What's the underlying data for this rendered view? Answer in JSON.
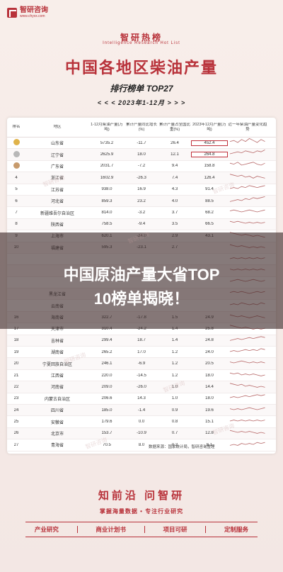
{
  "logo": {
    "name": "智研咨询",
    "sub": "www.chyxx.com"
  },
  "hero": {
    "title": "智研热榜",
    "subtitle": "Intelligence Research Hot List"
  },
  "main_title": "中国各地区柴油产量",
  "rank_line": "排行榜单 TOP27",
  "date_line": "< < <  2023年1-12月  > > >",
  "table": {
    "headers": [
      "排名",
      "地区",
      "1-12月柴油产量(万吨)",
      "累计产量同比增长(%)",
      "累计产量占全国比重(%)",
      "2023年12月产量(万吨)",
      "近一年柴油产量变化趋势"
    ],
    "rows": [
      {
        "rank": "1",
        "region": "山东省",
        "v1": "5735.2",
        "v2": "-11.7",
        "v3": "26.4",
        "v4": "452.4",
        "trend": [
          6,
          7,
          5,
          8,
          6,
          9,
          7,
          5,
          8,
          6
        ]
      },
      {
        "rank": "2",
        "region": "辽宁省",
        "v1": "2625.9",
        "v2": "18.0",
        "v3": "12.1",
        "v4": "264.8",
        "trend": [
          5,
          6,
          7,
          6,
          8,
          7,
          6,
          8,
          7,
          9
        ]
      },
      {
        "rank": "3",
        "region": "广东省",
        "v1": "2031.7",
        "v2": "-7.2",
        "v3": "9.4",
        "v4": "158.8",
        "trend": [
          7,
          6,
          8,
          5,
          6,
          7,
          8,
          6,
          5,
          7
        ]
      },
      {
        "rank": "4",
        "region": "浙江省",
        "v1": "1602.9",
        "v2": "-26.3",
        "v3": "7.4",
        "v4": "126.4",
        "trend": [
          8,
          7,
          6,
          7,
          5,
          6,
          4,
          6,
          5,
          4
        ]
      },
      {
        "rank": "5",
        "region": "江苏省",
        "v1": "938.0",
        "v2": "16.9",
        "v3": "4.3",
        "v4": "91.4",
        "trend": [
          5,
          6,
          5,
          7,
          6,
          8,
          7,
          6,
          7,
          8
        ]
      },
      {
        "rank": "6",
        "region": "河北省",
        "v1": "859.3",
        "v2": "23.2",
        "v3": "4.0",
        "v4": "88.5",
        "trend": [
          4,
          5,
          6,
          5,
          7,
          6,
          8,
          7,
          8,
          9
        ]
      },
      {
        "rank": "7",
        "region": "新疆维吾尔自治区",
        "v1": "814.0",
        "v2": "-3.2",
        "v3": "3.7",
        "v4": "68.2",
        "trend": [
          6,
          7,
          6,
          5,
          6,
          7,
          6,
          5,
          6,
          7
        ]
      },
      {
        "rank": "8",
        "region": "陕西省",
        "v1": "758.5",
        "v2": "-9.4",
        "v3": "3.5",
        "v4": "66.5",
        "trend": [
          7,
          6,
          7,
          6,
          5,
          6,
          5,
          6,
          5,
          6
        ]
      },
      {
        "rank": "9",
        "region": "上海市",
        "v1": "620.1",
        "v2": "-24.0",
        "v3": "2.9",
        "v4": "43.1",
        "trend": [
          8,
          7,
          6,
          5,
          6,
          5,
          4,
          5,
          4,
          3
        ]
      },
      {
        "rank": "10",
        "region": "福建省",
        "v1": "595.3",
        "v2": "-23.1",
        "v3": "2.7",
        "v4": "",
        "trend": [
          7,
          6,
          5,
          6,
          5,
          4,
          5,
          4,
          5,
          4
        ]
      },
      {
        "rank": "",
        "region": "",
        "v1": "",
        "v2": "",
        "v3": "",
        "v4": "",
        "trend": [
          5,
          6,
          5,
          6,
          5,
          6,
          5,
          6,
          5,
          6
        ]
      },
      {
        "rank": "",
        "region": "",
        "v1": "",
        "v2": "",
        "v3": "",
        "v4": "",
        "trend": [
          6,
          5,
          6,
          5,
          6,
          5,
          6,
          5,
          6,
          5
        ]
      },
      {
        "rank": "",
        "region": "",
        "v1": "",
        "v2": "",
        "v3": "",
        "v4": "",
        "trend": [
          5,
          6,
          7,
          6,
          5,
          6,
          7,
          6,
          5,
          6
        ]
      },
      {
        "rank": "",
        "region": "黑龙江省",
        "v1": "",
        "v2": "",
        "v3": "",
        "v4": "",
        "trend": [
          6,
          7,
          6,
          7,
          6,
          5,
          6,
          7,
          6,
          7
        ]
      },
      {
        "rank": "",
        "region": "云南省",
        "v1": "",
        "v2": "",
        "v3": "",
        "v4": "",
        "trend": [
          5,
          6,
          5,
          7,
          6,
          5,
          6,
          5,
          7,
          6
        ]
      },
      {
        "rank": "16",
        "region": "海南省",
        "v1": "322.7",
        "v2": "-17.8",
        "v3": "1.5",
        "v4": "24.9",
        "trend": [
          7,
          6,
          5,
          6,
          5,
          4,
          5,
          6,
          5,
          4
        ]
      },
      {
        "rank": "17",
        "region": "天津市",
        "v1": "310.4",
        "v2": "-24.2",
        "v3": "1.4",
        "v4": "25.8",
        "trend": [
          8,
          7,
          6,
          5,
          6,
          5,
          4,
          5,
          4,
          5
        ]
      },
      {
        "rank": "18",
        "region": "吉林省",
        "v1": "299.4",
        "v2": "18.7",
        "v3": "1.4",
        "v4": "24.8",
        "trend": [
          4,
          5,
          6,
          5,
          6,
          7,
          6,
          7,
          8,
          7
        ]
      },
      {
        "rank": "19",
        "region": "湖南省",
        "v1": "265.2",
        "v2": "17.0",
        "v3": "1.2",
        "v4": "24.0",
        "trend": [
          5,
          6,
          5,
          6,
          7,
          6,
          7,
          6,
          8,
          7
        ]
      },
      {
        "rank": "20",
        "region": "宁夏回族自治区",
        "v1": "246.1",
        "v2": "-6.9",
        "v3": "1.2",
        "v4": "20.5",
        "trend": [
          6,
          5,
          6,
          7,
          6,
          5,
          6,
          5,
          6,
          5
        ]
      },
      {
        "rank": "21",
        "region": "江西省",
        "v1": "220.0",
        "v2": "-14.5",
        "v3": "1.2",
        "v4": "18.0",
        "trend": [
          7,
          6,
          7,
          5,
          6,
          5,
          6,
          5,
          4,
          5
        ]
      },
      {
        "rank": "22",
        "region": "河南省",
        "v1": "209.0",
        "v2": "-26.0",
        "v3": "1.0",
        "v4": "14.4",
        "trend": [
          8,
          7,
          6,
          7,
          5,
          6,
          5,
          4,
          5,
          4
        ]
      },
      {
        "rank": "23",
        "region": "内蒙古自治区",
        "v1": "206.6",
        "v2": "14.3",
        "v3": "1.0",
        "v4": "18.0",
        "trend": [
          5,
          6,
          5,
          6,
          7,
          6,
          7,
          8,
          7,
          8
        ]
      },
      {
        "rank": "24",
        "region": "四川省",
        "v1": "185.0",
        "v2": "-1.4",
        "v3": "0.9",
        "v4": "19.6",
        "trend": [
          6,
          5,
          6,
          5,
          6,
          7,
          6,
          5,
          6,
          7
        ]
      },
      {
        "rank": "25",
        "region": "安徽省",
        "v1": "179.6",
        "v2": "0.0",
        "v3": "0.8",
        "v4": "15.1",
        "trend": [
          5,
          6,
          5,
          6,
          5,
          6,
          5,
          6,
          5,
          6
        ]
      },
      {
        "rank": "26",
        "region": "北京市",
        "v1": "153.7",
        "v2": "-10.9",
        "v3": "0.7",
        "v4": "12.8",
        "trend": [
          7,
          6,
          5,
          6,
          5,
          6,
          5,
          4,
          5,
          4
        ]
      },
      {
        "rank": "27",
        "region": "青海省",
        "v1": "70.5",
        "v2": "8.0",
        "v3": "0.3",
        "v4": "6.1",
        "trend": [
          4,
          5,
          4,
          6,
          5,
          6,
          5,
          7,
          6,
          7
        ]
      }
    ]
  },
  "source": "数据来源：国家统计局，智研咨询整理",
  "overlay": {
    "line1": "中国原油产量大省TOP",
    "line2": "10榜单揭晓！"
  },
  "brand": "知前沿  问智研",
  "slogan": "掌握海量数据 • 专注行业研究",
  "services": [
    "产业研究",
    "商业计划书",
    "项目可研",
    "定制服务"
  ],
  "watermark": "智研咨询",
  "colors": {
    "accent": "#b8323a",
    "highlight_border": "#c0303a"
  }
}
